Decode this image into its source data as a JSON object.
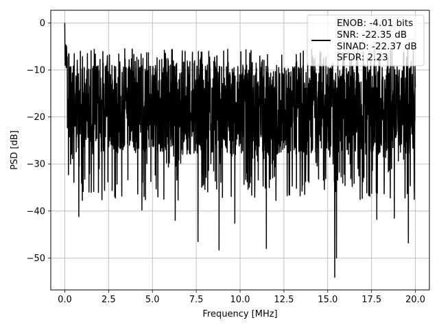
{
  "chart_data": {
    "type": "line",
    "title": "",
    "xlabel": "Frequency [MHz]",
    "ylabel": "PSD [dB]",
    "xlim": [
      -0.8,
      20.8
    ],
    "ylim": [
      -56.8,
      2.7
    ],
    "grid": true,
    "x_ticks": [
      0.0,
      2.5,
      5.0,
      7.5,
      10.0,
      12.5,
      15.0,
      17.5,
      20.0
    ],
    "x_tick_labels": [
      "0.0",
      "2.5",
      "5.0",
      "7.5",
      "10.0",
      "12.5",
      "15.0",
      "17.5",
      "20.0"
    ],
    "y_ticks": [
      0,
      -10,
      -20,
      -30,
      -40,
      -50
    ],
    "y_tick_labels": [
      "0",
      "−10",
      "−20",
      "−30",
      "−40",
      "−50"
    ],
    "legend": {
      "placement": "top-right",
      "entries": [
        "ENOB: -4.01 bits",
        "SNR: -22.35 dB",
        "SINAD: -22.37 dB",
        "SFDR: 2.23"
      ]
    },
    "series": [
      {
        "color": "#000000",
        "x_range": [
          0,
          20
        ],
        "peak": {
          "x": 0.0,
          "y": 0.0
        },
        "notable_dips": [
          {
            "x": 0.8,
            "y": -41.2
          },
          {
            "x": 4.4,
            "y": -39.8
          },
          {
            "x": 6.3,
            "y": -42.0
          },
          {
            "x": 7.6,
            "y": -46.5
          },
          {
            "x": 8.8,
            "y": -48.3
          },
          {
            "x": 9.7,
            "y": -42.6
          },
          {
            "x": 11.5,
            "y": -48.0
          },
          {
            "x": 15.4,
            "y": -54.1
          },
          {
            "x": 15.5,
            "y": -50.0
          },
          {
            "x": 17.8,
            "y": -41.8
          },
          {
            "x": 18.8,
            "y": -41.5
          },
          {
            "x": 19.6,
            "y": -46.8
          }
        ],
        "envelope_top": -5.3,
        "typical_range": [
          -30,
          -10
        ],
        "n_points": 2000
      }
    ]
  }
}
